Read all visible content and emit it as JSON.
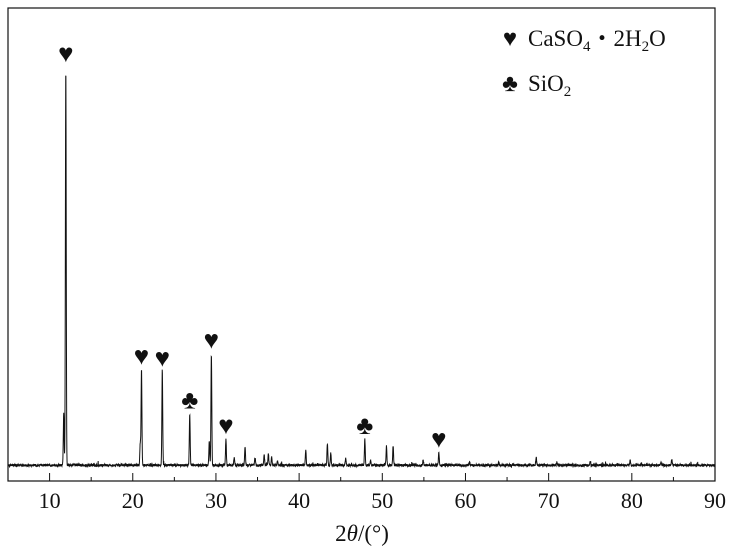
{
  "chart_data": {
    "type": "line",
    "title": "",
    "xlabel": "2θ/(°)",
    "ylabel": "",
    "xlim": [
      5,
      90
    ],
    "ylim": [
      0,
      1
    ],
    "grid": false,
    "legend_position": "top-right",
    "x_ticks": [
      "10",
      "20",
      "30",
      "40",
      "50",
      "60",
      "70",
      "80",
      "90"
    ],
    "legend": [
      {
        "symbol": "♥",
        "name": "CaSO4・2H2O",
        "label_parts": [
          "CaSO",
          "4",
          "・2H",
          "2",
          "O"
        ]
      },
      {
        "symbol": "♣",
        "name": "SiO2",
        "label_parts": [
          "SiO",
          "2",
          "",
          "",
          ""
        ]
      }
    ],
    "peaks": [
      {
        "x": 11.7,
        "y": 0.13,
        "phase": ""
      },
      {
        "x": 11.95,
        "y": 1.0,
        "phase": "CaSO4・2H2O"
      },
      {
        "x": 20.9,
        "y": 0.055,
        "phase": ""
      },
      {
        "x": 21.05,
        "y": 0.24,
        "phase": "CaSO4・2H2O"
      },
      {
        "x": 23.55,
        "y": 0.235,
        "phase": "CaSO4・2H2O"
      },
      {
        "x": 26.85,
        "y": 0.13,
        "phase": "SiO2"
      },
      {
        "x": 29.2,
        "y": 0.06,
        "phase": ""
      },
      {
        "x": 29.45,
        "y": 0.28,
        "phase": "CaSO4・2H2O"
      },
      {
        "x": 31.2,
        "y": 0.065,
        "phase": "CaSO4・2H2O"
      },
      {
        "x": 32.2,
        "y": 0.02,
        "phase": ""
      },
      {
        "x": 33.5,
        "y": 0.045,
        "phase": ""
      },
      {
        "x": 34.7,
        "y": 0.02,
        "phase": ""
      },
      {
        "x": 35.8,
        "y": 0.025,
        "phase": ""
      },
      {
        "x": 36.3,
        "y": 0.03,
        "phase": ""
      },
      {
        "x": 36.7,
        "y": 0.02,
        "phase": ""
      },
      {
        "x": 37.4,
        "y": 0.012,
        "phase": ""
      },
      {
        "x": 40.8,
        "y": 0.038,
        "phase": ""
      },
      {
        "x": 43.4,
        "y": 0.055,
        "phase": ""
      },
      {
        "x": 43.8,
        "y": 0.03,
        "phase": ""
      },
      {
        "x": 45.6,
        "y": 0.018,
        "phase": ""
      },
      {
        "x": 47.9,
        "y": 0.065,
        "phase": "SiO2"
      },
      {
        "x": 48.6,
        "y": 0.012,
        "phase": ""
      },
      {
        "x": 50.5,
        "y": 0.048,
        "phase": ""
      },
      {
        "x": 51.3,
        "y": 0.048,
        "phase": ""
      },
      {
        "x": 54.9,
        "y": 0.012,
        "phase": ""
      },
      {
        "x": 56.8,
        "y": 0.032,
        "phase": "CaSO4・2H2O"
      },
      {
        "x": 60.5,
        "y": 0.008,
        "phase": ""
      },
      {
        "x": 64.0,
        "y": 0.008,
        "phase": ""
      },
      {
        "x": 68.5,
        "y": 0.02,
        "phase": ""
      },
      {
        "x": 71.0,
        "y": 0.008,
        "phase": ""
      },
      {
        "x": 75.0,
        "y": 0.008,
        "phase": ""
      },
      {
        "x": 79.8,
        "y": 0.015,
        "phase": ""
      },
      {
        "x": 83.5,
        "y": 0.008,
        "phase": ""
      },
      {
        "x": 84.8,
        "y": 0.015,
        "phase": ""
      }
    ],
    "markers": [
      {
        "x": 11.95,
        "y": 1.0,
        "symbol": "♥"
      },
      {
        "x": 21.05,
        "y": 0.24,
        "symbol": "♥"
      },
      {
        "x": 23.55,
        "y": 0.235,
        "symbol": "♥"
      },
      {
        "x": 26.85,
        "y": 0.13,
        "symbol": "♣"
      },
      {
        "x": 29.45,
        "y": 0.28,
        "symbol": "♥"
      },
      {
        "x": 31.2,
        "y": 0.065,
        "symbol": "♥"
      },
      {
        "x": 47.9,
        "y": 0.065,
        "symbol": "♣"
      },
      {
        "x": 56.8,
        "y": 0.032,
        "symbol": "♥"
      }
    ]
  }
}
